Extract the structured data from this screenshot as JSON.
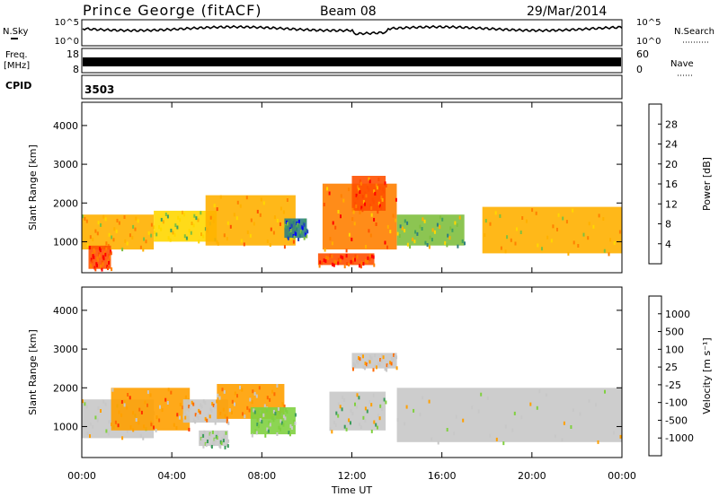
{
  "header": {
    "station": "Prince George (fitACF)",
    "beam": "Beam 08",
    "date": "29/Mar/2014"
  },
  "strips": {
    "nsky_label": "N.Sky",
    "nsearch_label": "N.Search",
    "freq_label_line1": "Freq.",
    "freq_label_line2": "[MHz]",
    "nave_label": "Nave",
    "cpid_label": "CPID",
    "cpid_value": "3503",
    "noise_ticks_left": [
      "10^5",
      "10^0"
    ],
    "noise_ticks_right": [
      "10^5",
      "10^0"
    ],
    "freq_ticks_left": [
      "18",
      "8"
    ],
    "nave_ticks_right": [
      "60",
      "0"
    ]
  },
  "chart_data": [
    {
      "type": "heatmap",
      "title": "",
      "xlabel": "Time UT",
      "ylabel": "Slant Range [km]",
      "x_ticks": [
        "00:00",
        "04:00",
        "08:00",
        "12:00",
        "16:00",
        "20:00",
        "00:00"
      ],
      "y_ticks": [
        "1000",
        "2000",
        "3000",
        "4000"
      ],
      "ylim": [
        200,
        4600
      ],
      "colorbar": {
        "label": "Power [dB]",
        "ticks": [
          "4",
          "8",
          "12",
          "16",
          "20",
          "24",
          "28"
        ],
        "range": [
          0,
          32
        ],
        "colors": [
          "#0000ff",
          "#1f3fbf",
          "#2e7f7f",
          "#3f9f5f",
          "#7fbf3f",
          "#ffd700",
          "#ffb000",
          "#ff8000",
          "#ff5000",
          "#ff0000"
        ]
      },
      "bands": [
        {
          "t0": 0.0,
          "t1": 3.2,
          "r0": 800,
          "r1": 1700,
          "level": 20
        },
        {
          "t0": 0.3,
          "t1": 1.3,
          "r0": 300,
          "r1": 900,
          "level": 28
        },
        {
          "t0": 3.2,
          "t1": 6.0,
          "r0": 1000,
          "r1": 1800,
          "level": 16
        },
        {
          "t0": 5.5,
          "t1": 9.5,
          "r0": 900,
          "r1": 2200,
          "level": 22
        },
        {
          "t0": 9.0,
          "t1": 10.0,
          "r0": 1100,
          "r1": 1600,
          "level": 8
        },
        {
          "t0": 10.7,
          "t1": 14.0,
          "r0": 800,
          "r1": 2500,
          "level": 24
        },
        {
          "t0": 12.0,
          "t1": 13.5,
          "r0": 1800,
          "r1": 2700,
          "level": 26
        },
        {
          "t0": 10.5,
          "t1": 13.0,
          "r0": 400,
          "r1": 700,
          "level": 28
        },
        {
          "t0": 14.0,
          "t1": 17.0,
          "r0": 900,
          "r1": 1700,
          "level": 14
        },
        {
          "t0": 17.8,
          "t1": 24.0,
          "r0": 700,
          "r1": 1900,
          "level": 20
        }
      ]
    },
    {
      "type": "heatmap",
      "title": "",
      "xlabel": "Time UT",
      "ylabel": "Slant Range [km]",
      "x_ticks": [
        "00:00",
        "04:00",
        "08:00",
        "12:00",
        "16:00",
        "20:00",
        "00:00"
      ],
      "y_ticks": [
        "1000",
        "2000",
        "3000",
        "4000"
      ],
      "ylim": [
        200,
        4600
      ],
      "colorbar": {
        "label": "Velocity [m s⁻¹]",
        "ticks": [
          "1000",
          "500",
          "100",
          "25",
          "-25",
          "-100",
          "-500",
          "-1000"
        ],
        "range": [
          -1000,
          1000
        ],
        "colors": [
          "#ff0000",
          "#ff3000",
          "#ff6a00",
          "#ffa000",
          "#c8c8c8",
          "#c8c8c8",
          "#80d040",
          "#3c9c5c",
          "#2060a0",
          "#0030ff"
        ]
      },
      "bands": [
        {
          "t0": 0.0,
          "t1": 3.2,
          "r0": 700,
          "r1": 1700,
          "level": 0
        },
        {
          "t0": 1.3,
          "t1": 4.8,
          "r0": 900,
          "r1": 2000,
          "level": -400
        },
        {
          "t0": 4.5,
          "t1": 6.5,
          "r0": 1100,
          "r1": 1700,
          "level": -150
        },
        {
          "t0": 5.2,
          "t1": 6.5,
          "r0": 500,
          "r1": 900,
          "level": 150
        },
        {
          "t0": 6.0,
          "t1": 9.0,
          "r0": 1200,
          "r1": 2100,
          "level": -250
        },
        {
          "t0": 7.5,
          "t1": 9.5,
          "r0": 800,
          "r1": 1500,
          "level": 200
        },
        {
          "t0": 11.0,
          "t1": 13.5,
          "r0": 900,
          "r1": 1900,
          "level": 120
        },
        {
          "t0": 12.0,
          "t1": 14.0,
          "r0": 2500,
          "r1": 2900,
          "level": -150
        },
        {
          "t0": 14.0,
          "t1": 24.0,
          "r0": 600,
          "r1": 2000,
          "level": 0
        }
      ]
    }
  ]
}
